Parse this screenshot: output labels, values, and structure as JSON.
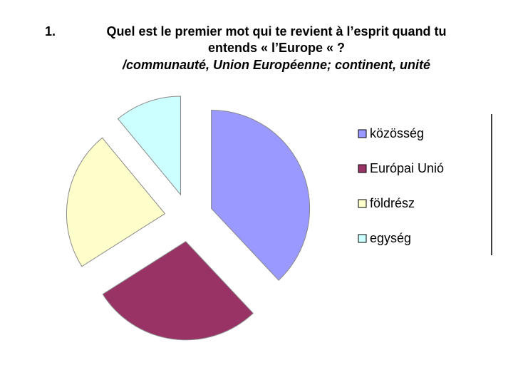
{
  "slide": {
    "number": "1.",
    "title": [
      "Quel est le premier mot qui te revient à l’esprit quand tu",
      "entends « l’Europe « ?",
      "/communauté, Union Européenne; continent, unité"
    ]
  },
  "chart_data": {
    "type": "pie",
    "categories": [
      "közösség",
      "Európai Unió",
      "földrész",
      "egység"
    ],
    "values": [
      38,
      28,
      23,
      11
    ],
    "colors": [
      "#9999ff",
      "#993366",
      "#ffffcc",
      "#ccffff"
    ],
    "legend": "right"
  }
}
